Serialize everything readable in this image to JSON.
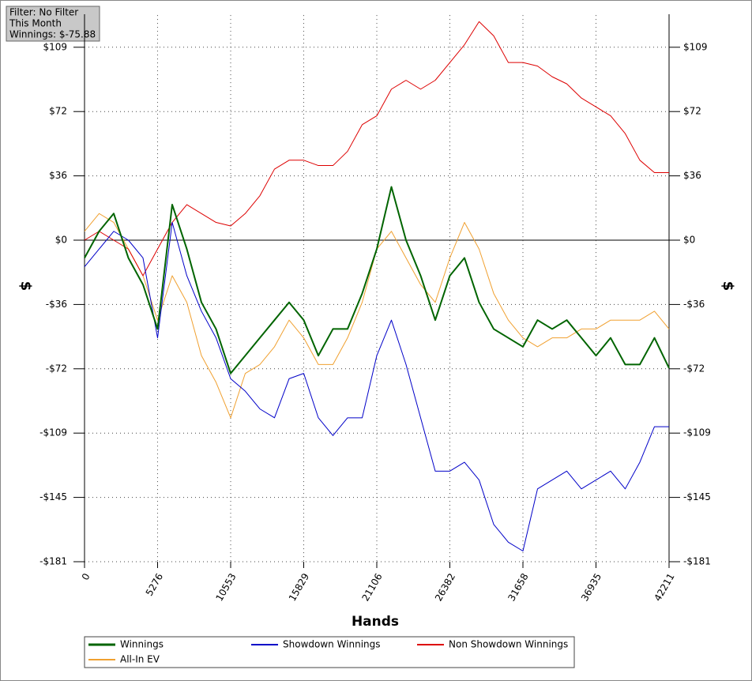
{
  "chart_data": {
    "type": "line",
    "annotations": [
      "Filter: No Filter",
      "This Month",
      "Winnings: $-75.88"
    ],
    "xlabel": "Hands",
    "ylabel": "$",
    "x": [
      0,
      1055,
      2110,
      3166,
      4221,
      5276,
      6332,
      7387,
      8442,
      9497,
      10553,
      11608,
      12663,
      13718,
      14774,
      15829,
      16884,
      17940,
      18995,
      20050,
      21106,
      22161,
      23216,
      24271,
      25327,
      26382,
      27437,
      28493,
      29548,
      30603,
      31658,
      32714,
      33769,
      34824,
      35880,
      36935,
      37990,
      39045,
      40101,
      41156,
      42211
    ],
    "xlim": [
      0,
      42211
    ],
    "xticks": [
      0,
      5276,
      10553,
      15829,
      21106,
      26382,
      31658,
      36935,
      42211
    ],
    "ylim": [
      -181,
      126.7
    ],
    "yticks": [
      {
        "value": -181,
        "label": "-$181"
      },
      {
        "value": -144.8,
        "label": "-$145"
      },
      {
        "value": -108.6,
        "label": "-$109"
      },
      {
        "value": -72.4,
        "label": "-$72"
      },
      {
        "value": -36.2,
        "label": "-$36"
      },
      {
        "value": 0,
        "label": "$0"
      },
      {
        "value": 36.2,
        "label": "$36"
      },
      {
        "value": 72.4,
        "label": "$72"
      },
      {
        "value": 108.6,
        "label": "$109"
      }
    ],
    "grid": true,
    "series": [
      {
        "name": "Winnings",
        "color": "#006400",
        "width": 2,
        "values": [
          -10,
          5,
          15,
          -10,
          -25,
          -50,
          20,
          -5,
          -35,
          -50,
          -75,
          -65,
          -55,
          -45,
          -35,
          -45,
          -65,
          -50,
          -50,
          -30,
          -5,
          30,
          0,
          -20,
          -45,
          -20,
          -10,
          -35,
          -50,
          -55,
          -60,
          -45,
          -50,
          -45,
          -55,
          -65,
          -55,
          -70,
          -70,
          -55,
          -72
        ]
      },
      {
        "name": "Showdown Winnings",
        "color": "#0000c8",
        "width": 1,
        "values": [
          -15,
          -5,
          5,
          0,
          -10,
          -55,
          10,
          -20,
          -40,
          -55,
          -78,
          -85,
          -95,
          -100,
          -78,
          -75,
          -100,
          -110,
          -100,
          -100,
          -65,
          -45,
          -70,
          -100,
          -130,
          -130,
          -125,
          -135,
          -160,
          -170,
          -175,
          -140,
          -135,
          -130,
          -140,
          -135,
          -130,
          -140,
          -125,
          -105,
          -105
        ]
      },
      {
        "name": "Non Showdown Winnings",
        "color": "#dd0000",
        "width": 1,
        "values": [
          0,
          5,
          0,
          -5,
          -20,
          -5,
          10,
          20,
          15,
          10,
          8,
          15,
          25,
          40,
          45,
          45,
          42,
          42,
          50,
          65,
          70,
          85,
          90,
          85,
          90,
          100,
          110,
          123,
          115,
          100,
          100,
          98,
          92,
          88,
          80,
          75,
          70,
          60,
          45,
          38,
          38
        ]
      },
      {
        "name": "All-In EV",
        "color": "#f0a030",
        "width": 1,
        "values": [
          5,
          15,
          10,
          -5,
          -20,
          -45,
          -20,
          -35,
          -65,
          -80,
          -100,
          -75,
          -70,
          -60,
          -45,
          -55,
          -70,
          -70,
          -55,
          -35,
          -5,
          5,
          -10,
          -25,
          -35,
          -10,
          10,
          -5,
          -30,
          -45,
          -55,
          -60,
          -55,
          -55,
          -50,
          -50,
          -45,
          -45,
          -45,
          -40,
          -50
        ]
      }
    ]
  }
}
